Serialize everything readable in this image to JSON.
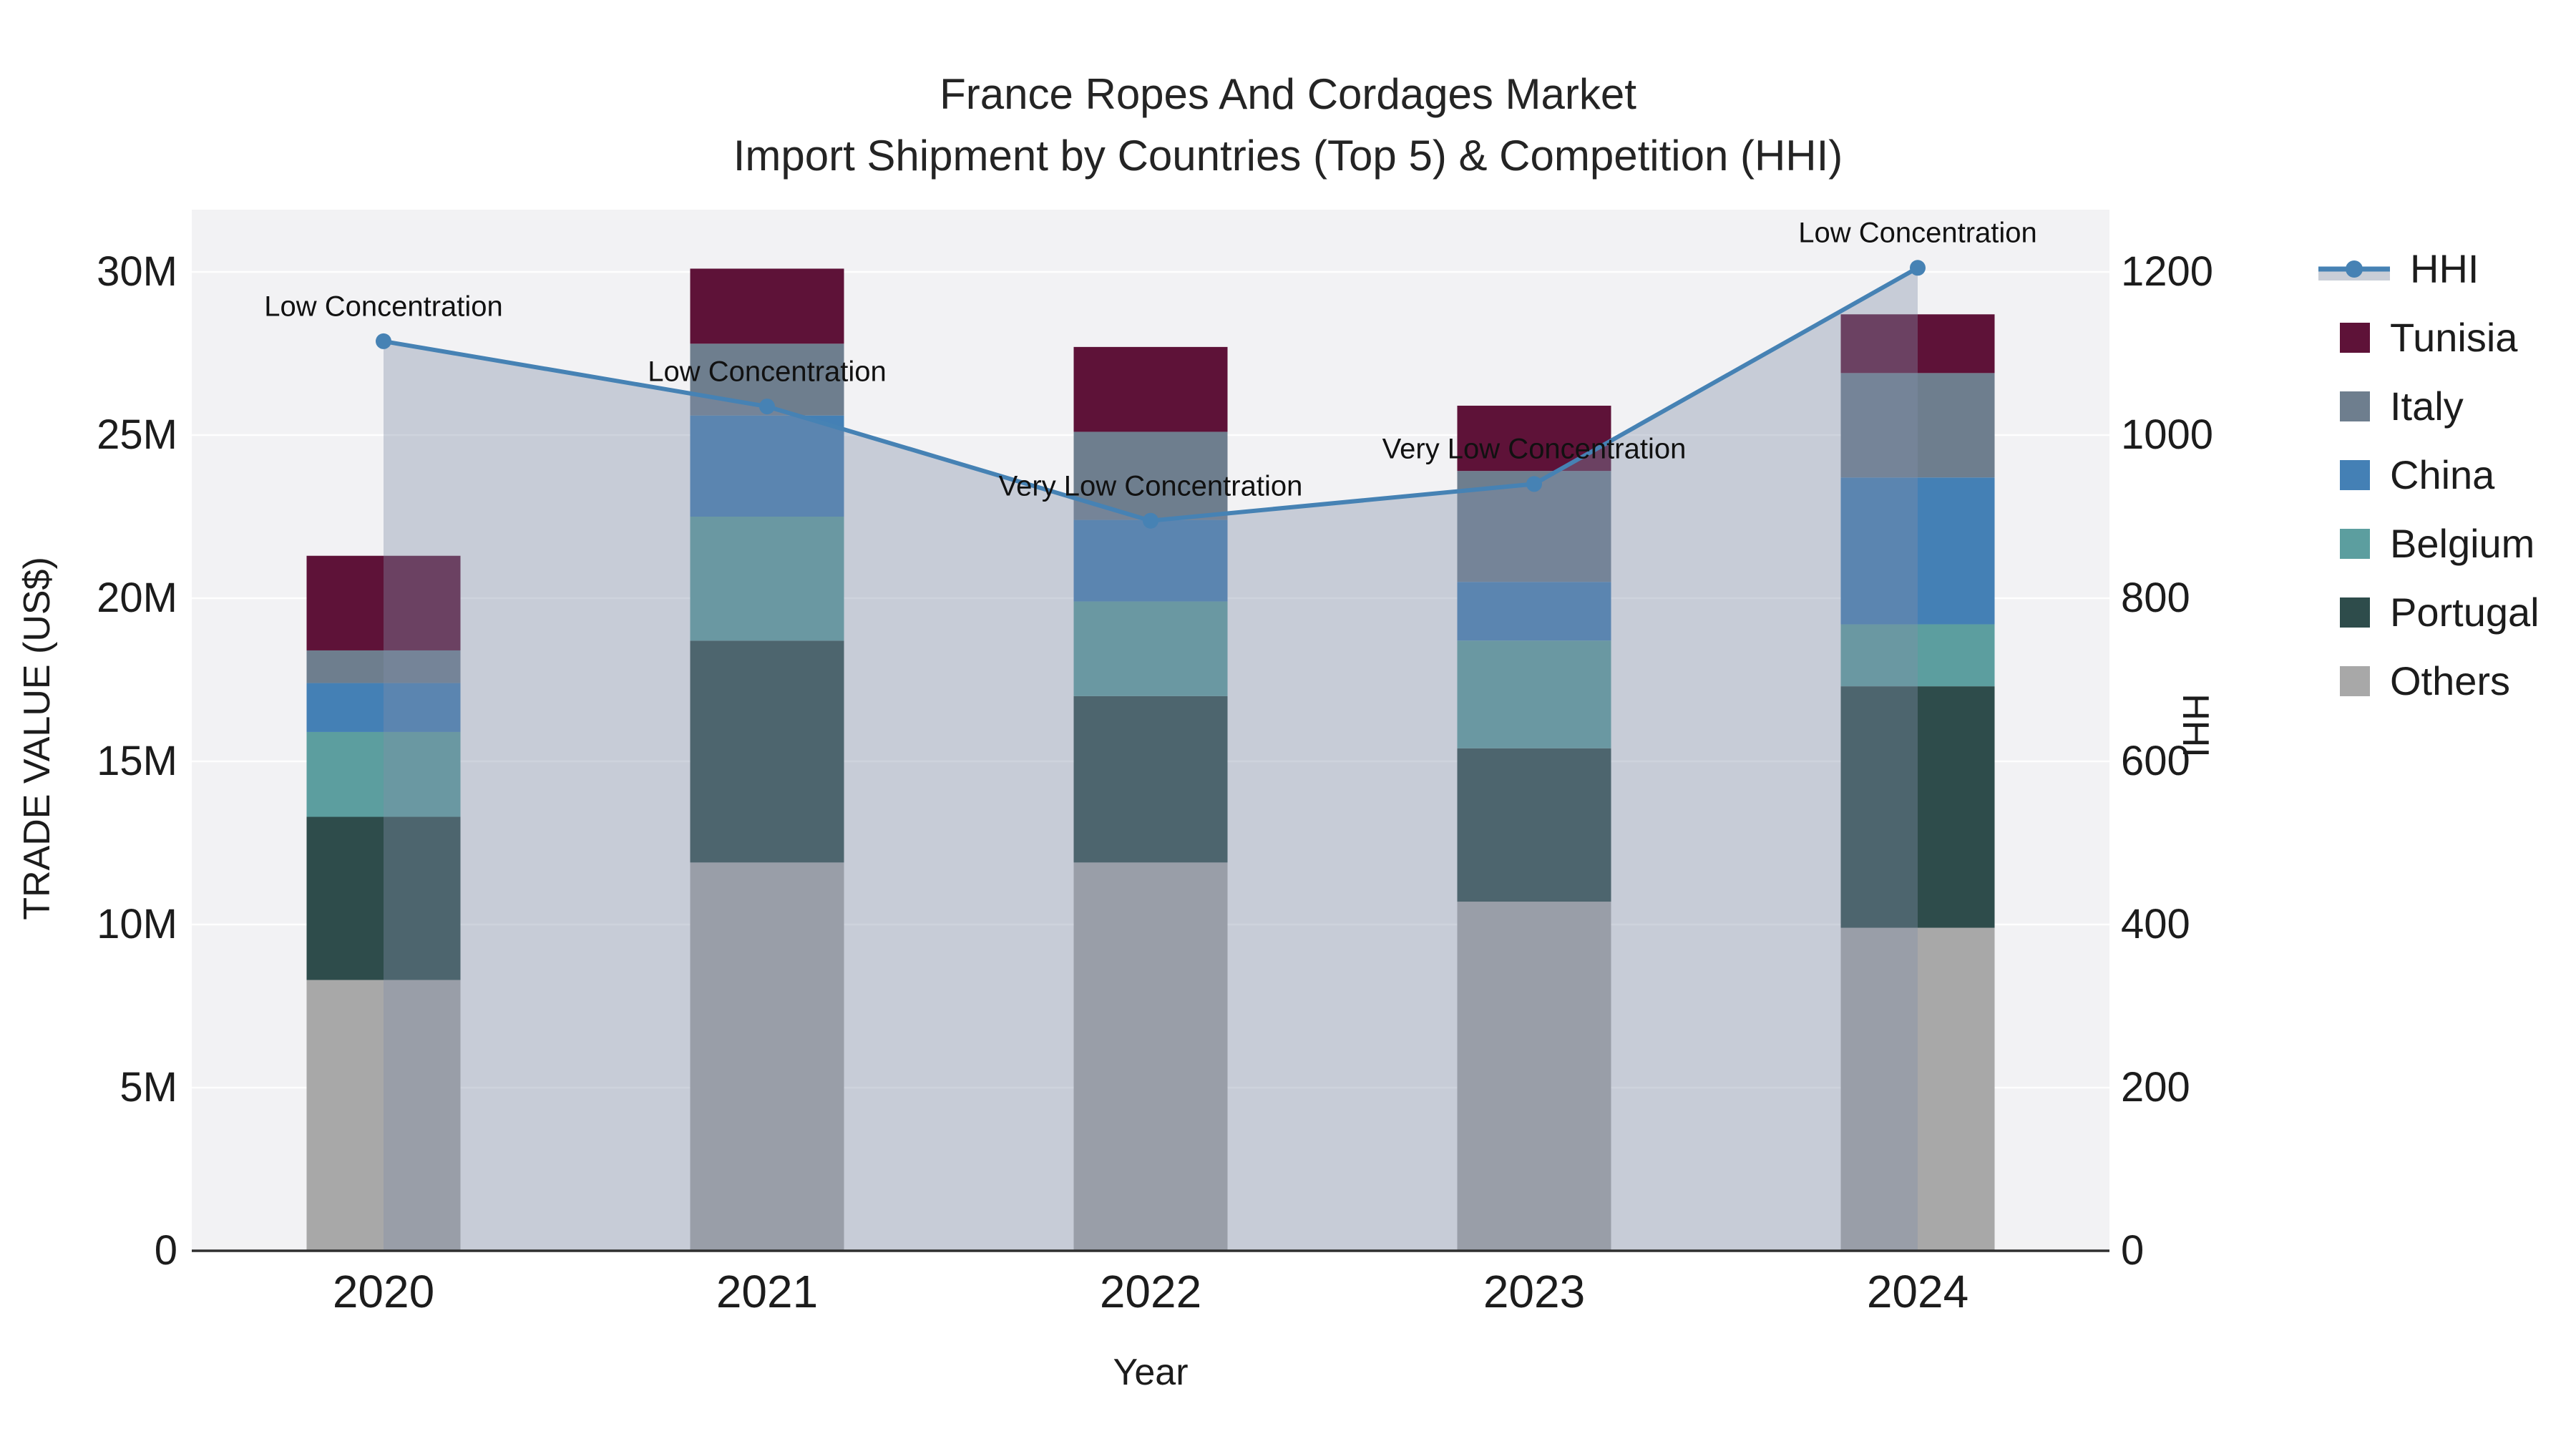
{
  "title": {
    "line1": "France Ropes And Cordages Market",
    "line2": "Import Shipment by Countries (Top 5) & Competition (HHI)"
  },
  "axes": {
    "x": {
      "title": "Year",
      "ticks": [
        "2020",
        "2021",
        "2022",
        "2023",
        "2024"
      ]
    },
    "y_left": {
      "title": "TRADE VALUE (US$)",
      "ticks": [
        "0",
        "5M",
        "10M",
        "15M",
        "20M",
        "25M",
        "30M"
      ],
      "tick_values_millions": [
        0,
        5,
        10,
        15,
        20,
        25,
        30
      ],
      "range_millions": [
        0,
        31.9
      ]
    },
    "y_right": {
      "title": "HHI",
      "ticks": [
        "0",
        "200",
        "400",
        "600",
        "800",
        "1000",
        "1200"
      ],
      "tick_values": [
        0,
        200,
        400,
        600,
        800,
        1000,
        1200
      ],
      "range": [
        0,
        1275
      ]
    }
  },
  "legend": {
    "items": [
      {
        "label": "HHI",
        "type": "line",
        "color": "#4682B4"
      },
      {
        "label": "Tunisia",
        "type": "swatch",
        "color": "#5E1238"
      },
      {
        "label": "Italy",
        "type": "swatch",
        "color": "#6E7E8E"
      },
      {
        "label": "China",
        "type": "swatch",
        "color": "#4480B5"
      },
      {
        "label": "Belgium",
        "type": "swatch",
        "color": "#5C9E9F"
      },
      {
        "label": "Portugal",
        "type": "swatch",
        "color": "#2E4C4B"
      },
      {
        "label": "Others",
        "type": "swatch",
        "color": "#A8A8A8"
      }
    ]
  },
  "colors": {
    "plot_background": "#F2F2F4",
    "gridline": "#FFFFFF",
    "axis_line": "#2F2F2F",
    "hhi_line": "#4682B4",
    "hhi_area_fill": "rgba(128,143,168,0.38)",
    "text": "#1c1c1c"
  },
  "chart_data": {
    "type": "combo-stacked-bar-line",
    "categories": [
      "2020",
      "2021",
      "2022",
      "2023",
      "2024"
    ],
    "bar_unit": "millions USD",
    "stack_order_bottom_to_top": [
      "Others",
      "Portugal",
      "Belgium",
      "China",
      "Italy",
      "Tunisia"
    ],
    "series": [
      {
        "name": "Others",
        "color": "#A8A8A8",
        "values": [
          8.3,
          11.9,
          11.9,
          10.7,
          9.9
        ]
      },
      {
        "name": "Portugal",
        "color": "#2E4C4B",
        "values": [
          5.0,
          6.8,
          5.1,
          4.7,
          7.4
        ]
      },
      {
        "name": "Belgium",
        "color": "#5C9E9F",
        "values": [
          2.6,
          3.8,
          2.9,
          3.3,
          1.9
        ]
      },
      {
        "name": "China",
        "color": "#4480B5",
        "values": [
          1.5,
          3.1,
          2.5,
          1.8,
          4.5
        ]
      },
      {
        "name": "Italy",
        "color": "#6E7E8E",
        "values": [
          1.0,
          2.2,
          2.7,
          3.4,
          3.2
        ]
      },
      {
        "name": "Tunisia",
        "color": "#5E1238",
        "values": [
          2.9,
          2.3,
          2.6,
          2.0,
          1.8
        ]
      }
    ],
    "bar_totals_millions": [
      21.3,
      30.1,
      27.7,
      25.9,
      28.7
    ],
    "line_series": {
      "name": "HHI",
      "color": "#4682B4",
      "values": [
        1115,
        1035,
        895,
        940,
        1205
      ],
      "axis": "y_right"
    },
    "annotations": [
      {
        "category": "2020",
        "text": "Low Concentration"
      },
      {
        "category": "2021",
        "text": "Low Concentration"
      },
      {
        "category": "2022",
        "text": "Very Low Concentration"
      },
      {
        "category": "2023",
        "text": "Very Low Concentration"
      },
      {
        "category": "2024",
        "text": "Low Concentration"
      }
    ],
    "legend_position": "right",
    "grid": "horizontal-only"
  }
}
